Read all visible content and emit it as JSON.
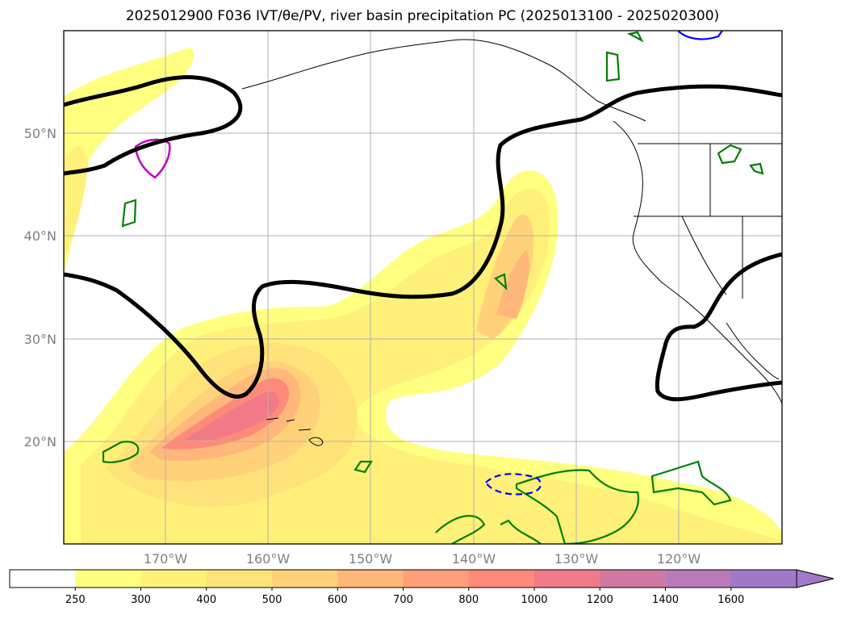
{
  "title": "2025012900 F036 IVT/θe/PV, river basin precipitation PC (2025013100 - 2025020300)",
  "map": {
    "lat_labels": [
      "50°N",
      "40°N",
      "30°N",
      "20°N"
    ],
    "lon_labels": [
      "170°W",
      "160°W",
      "150°W",
      "140°W",
      "130°W",
      "120°W"
    ],
    "extent": {
      "lon": [
        -180,
        -110
      ],
      "lat": [
        10,
        60
      ]
    }
  },
  "colorbar": {
    "ticks": [
      "250",
      "300",
      "400",
      "500",
      "600",
      "700",
      "800",
      "1000",
      "1200",
      "1400",
      "1600"
    ],
    "colors": [
      "#ffffff",
      "#ffff80",
      "#fff07a",
      "#ffe27a",
      "#ffd27a",
      "#ffb87a",
      "#ffa07a",
      "#ff8a7a",
      "#f07a88",
      "#d07aa0",
      "#b87ab8",
      "#a07ac8"
    ],
    "extend": "max"
  },
  "colors": {
    "theta_e": "#000000",
    "pv_positive": "#008000",
    "pv_negative": "#0000ff",
    "magenta": "#c000c0",
    "grid": "#b0b0b0",
    "coast": "#000000"
  }
}
